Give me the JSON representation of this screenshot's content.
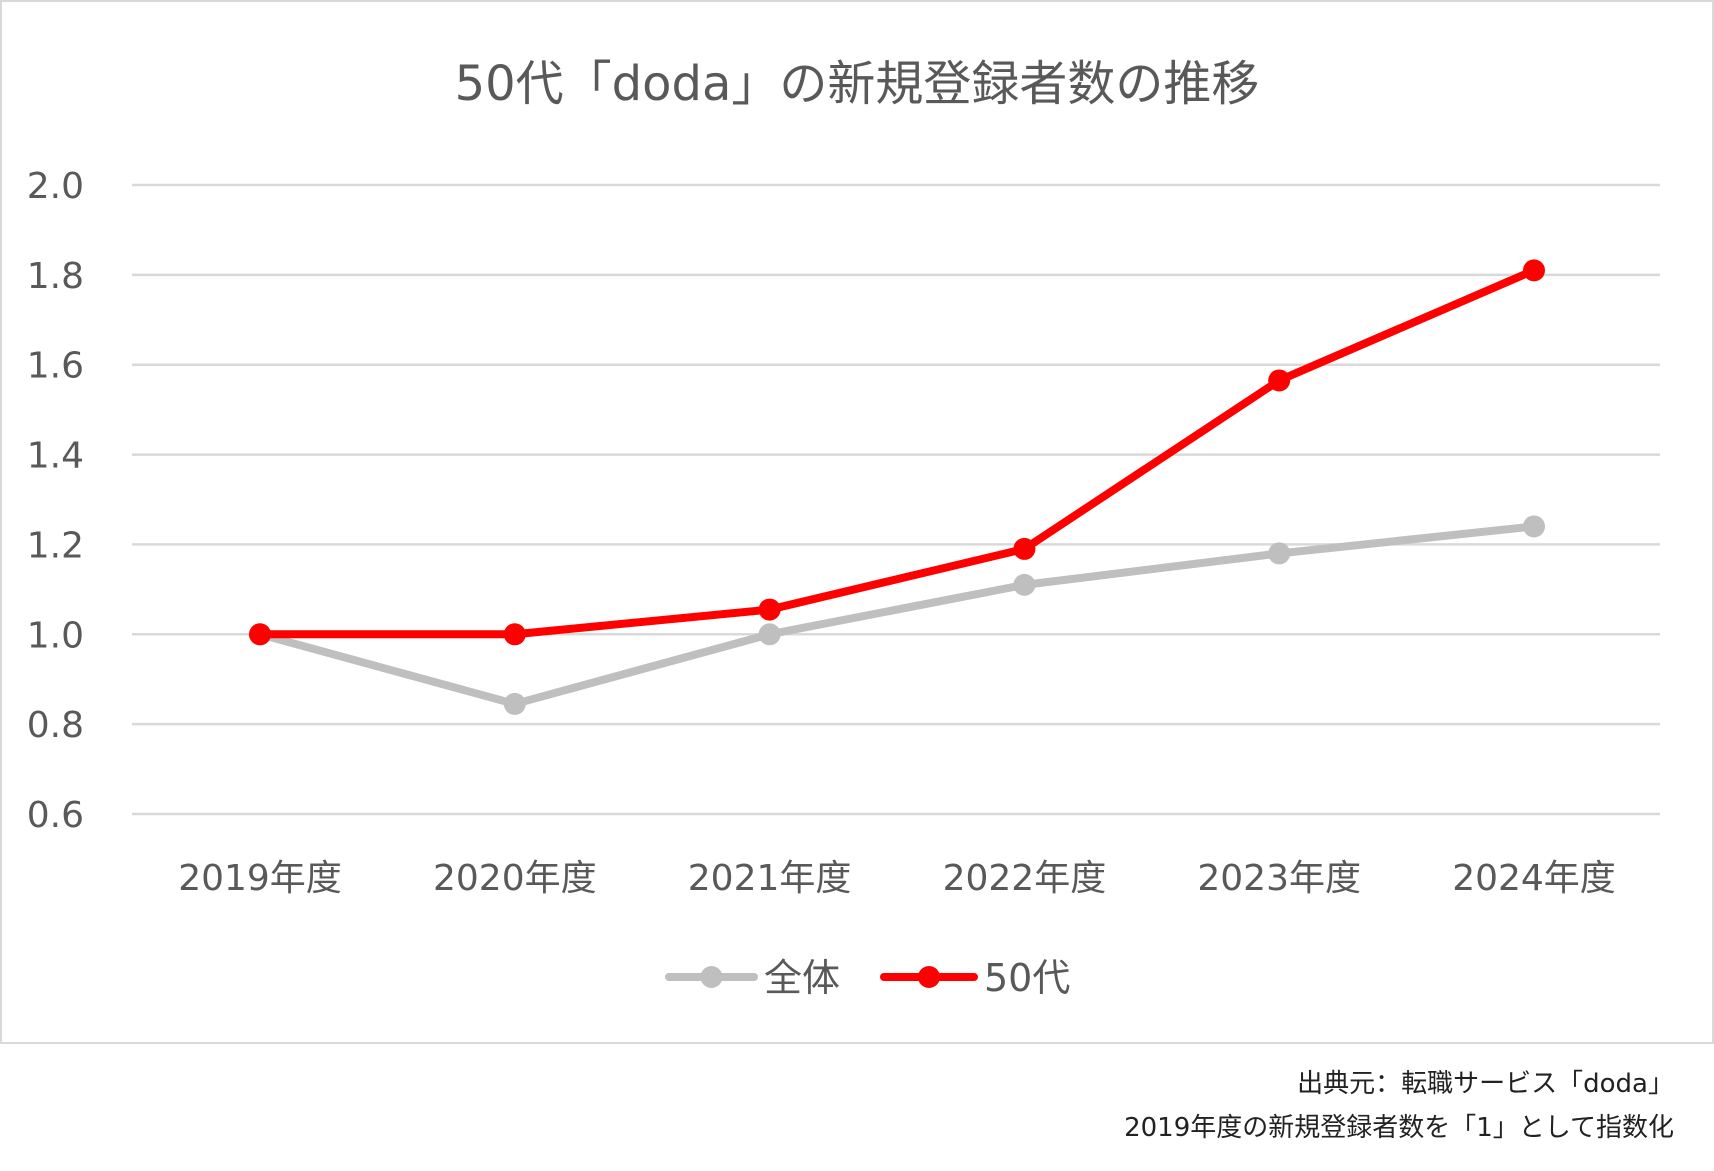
{
  "chart_data": {
    "type": "line",
    "title": "50代「doda」の新規登録者数の推移",
    "categories": [
      "2019年度",
      "2020年度",
      "2021年度",
      "2022年度",
      "2023年度",
      "2024年度"
    ],
    "series": [
      {
        "name": "全体",
        "color": "#bfbfbf",
        "values": [
          1.0,
          0.845,
          1.0,
          1.11,
          1.18,
          1.24
        ]
      },
      {
        "name": "50代",
        "color": "#ff0000",
        "values": [
          1.0,
          1.0,
          1.055,
          1.19,
          1.565,
          1.81
        ]
      }
    ],
    "ylim": [
      0.6,
      2.0
    ],
    "yticks": [
      "0.6",
      "0.8",
      "1.0",
      "1.2",
      "1.4",
      "1.6",
      "1.8",
      "2.0"
    ],
    "xlabel": "",
    "ylabel": "",
    "grid": true,
    "legend_position": "bottom"
  },
  "notes": {
    "source": "出典元：転職サービス「doda」",
    "index_note": "2019年度の新規登録者数を「1」として指数化"
  }
}
